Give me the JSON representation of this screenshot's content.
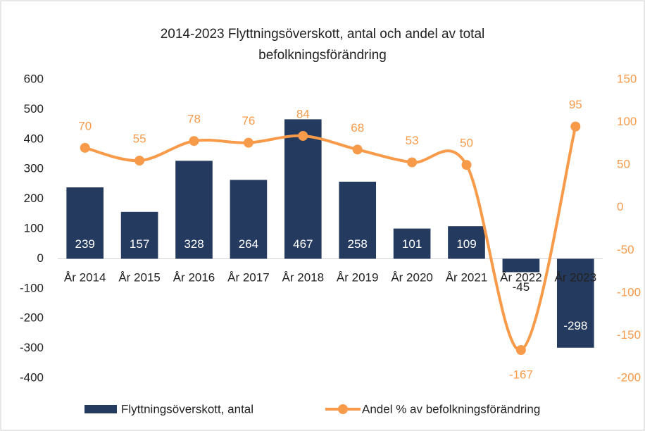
{
  "chart_data": {
    "type": "bar-line",
    "title": "2014-2023 Flyttningsöverskott, antal och andel av total befolkningsförändring",
    "categories": [
      "År 2014",
      "År 2015",
      "År 2016",
      "År 2017",
      "År 2018",
      "År 2019",
      "År 2020",
      "År 2021",
      "År 2022",
      "År 2023"
    ],
    "series": [
      {
        "name": "Flyttningsöverskott, antal",
        "type": "bar",
        "color": "#243a5e",
        "axis": "y",
        "values": [
          239,
          157,
          328,
          264,
          467,
          258,
          101,
          109,
          -45,
          -298
        ]
      },
      {
        "name": "Andel % av befolkningsförändring",
        "type": "line",
        "color": "#f79a4a",
        "axis": "y2",
        "values": [
          70,
          55,
          78,
          76,
          84,
          68,
          53,
          50,
          -167,
          95
        ]
      }
    ],
    "ylim": [
      -400,
      600
    ],
    "yticks": [
      -400,
      -300,
      -200,
      -100,
      0,
      100,
      200,
      300,
      400,
      500,
      600
    ],
    "y2lim": [
      -200,
      150
    ],
    "y2ticks": [
      -200,
      -150,
      -100,
      -50,
      0,
      50,
      100,
      150
    ],
    "grid": false,
    "legend": "bottom"
  }
}
